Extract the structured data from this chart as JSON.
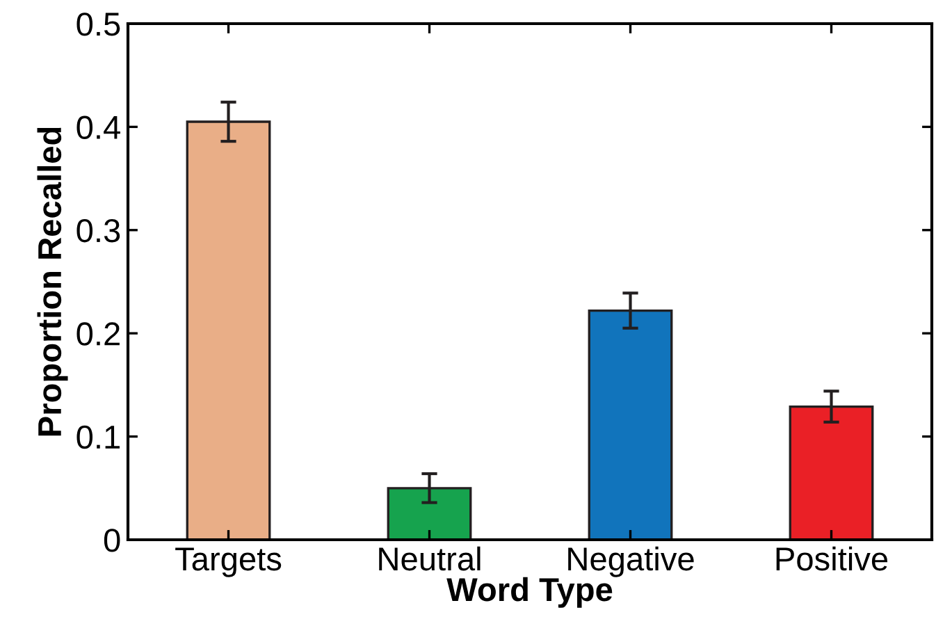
{
  "chart_data": {
    "type": "bar",
    "xlabel": "Word Type",
    "ylabel": "Proportion Recalled",
    "categories": [
      "Targets",
      "Neutral",
      "Negative",
      "Positive"
    ],
    "values": [
      0.405,
      0.05,
      0.222,
      0.129
    ],
    "errors": [
      0.019,
      0.014,
      0.017,
      0.015
    ],
    "colors": [
      "#e9ae87",
      "#16a34e",
      "#1174bc",
      "#ea2026"
    ],
    "ylim": [
      0,
      0.5
    ],
    "yticks": [
      0,
      0.1,
      0.2,
      0.3,
      0.4,
      0.5
    ],
    "grid": false,
    "legend": false
  }
}
